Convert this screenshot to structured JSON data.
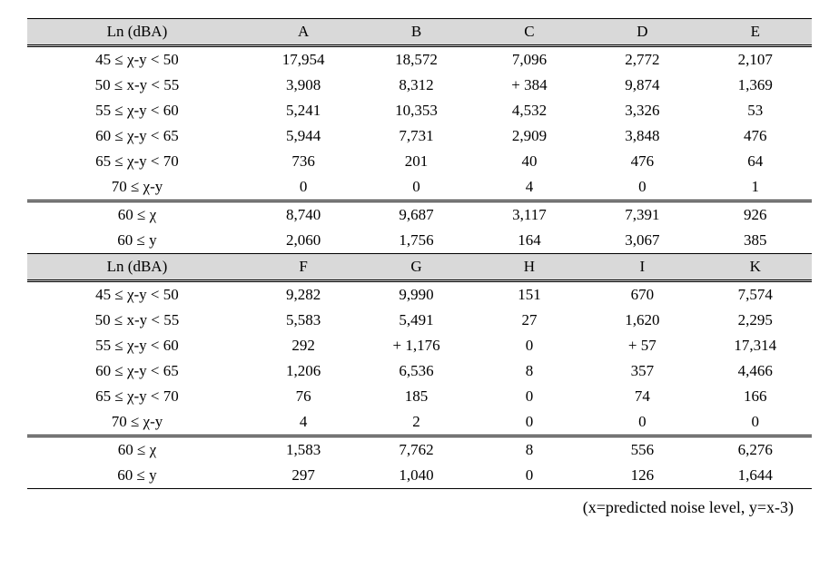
{
  "table": {
    "header_row_1": {
      "range": "Ln (dBA)",
      "cols": [
        "A",
        "B",
        "C",
        "D",
        "E"
      ]
    },
    "group1_rows": [
      {
        "range": "45 ≤ χ-y < 50",
        "vals": [
          "17,954",
          "18,572",
          "7,096",
          "2,772",
          "2,107"
        ]
      },
      {
        "range": "50 ≤ x-y < 55",
        "vals": [
          "3,908",
          "8,312",
          "+ 384",
          "9,874",
          "1,369"
        ]
      },
      {
        "range": "55 ≤ χ-y < 60",
        "vals": [
          "5,241",
          "10,353",
          "4,532",
          "3,326",
          "53"
        ]
      },
      {
        "range": "60 ≤ χ-y < 65",
        "vals": [
          "5,944",
          "7,731",
          "2,909",
          "3,848",
          "476"
        ]
      },
      {
        "range": "65 ≤ χ-y < 70",
        "vals": [
          "736",
          "201",
          "40",
          "476",
          "64"
        ]
      },
      {
        "range": "70 ≤ χ-y",
        "vals": [
          "0",
          "0",
          "4",
          "0",
          "1"
        ]
      }
    ],
    "group1_summary": [
      {
        "range": "60 ≤ χ",
        "vals": [
          "8,740",
          "9,687",
          "3,117",
          "7,391",
          "926"
        ]
      },
      {
        "range": "60 ≤ y",
        "vals": [
          "2,060",
          "1,756",
          "164",
          "3,067",
          "385"
        ]
      }
    ],
    "header_row_2": {
      "range": "Ln (dBA)",
      "cols": [
        "F",
        "G",
        "H",
        "I",
        "K"
      ]
    },
    "group2_rows": [
      {
        "range": "45 ≤ χ-y < 50",
        "vals": [
          "9,282",
          "9,990",
          "151",
          "670",
          "7,574"
        ]
      },
      {
        "range": "50 ≤ x-y < 55",
        "vals": [
          "5,583",
          "5,491",
          "27",
          "1,620",
          "2,295"
        ]
      },
      {
        "range": "55 ≤ χ-y < 60",
        "vals": [
          "292",
          "+ 1,176",
          "0",
          "+ 57",
          "17,314"
        ]
      },
      {
        "range": "60 ≤ χ-y < 65",
        "vals": [
          "1,206",
          "6,536",
          "8",
          "357",
          "4,466"
        ]
      },
      {
        "range": "65 ≤ χ-y < 70",
        "vals": [
          "76",
          "185",
          "0",
          "74",
          "166"
        ]
      },
      {
        "range": "70 ≤ χ-y",
        "vals": [
          "4",
          "2",
          "0",
          "0",
          "0"
        ]
      }
    ],
    "group2_summary": [
      {
        "range": "60 ≤ χ",
        "vals": [
          "1,583",
          "7,762",
          "8",
          "556",
          "6,276"
        ]
      },
      {
        "range": "60 ≤ y",
        "vals": [
          "297",
          "1,040",
          "0",
          "126",
          "1,644"
        ]
      }
    ]
  },
  "note_text": "(x=predicted noise level, y=x-3)",
  "style": {
    "background": "#ffffff",
    "text_color": "#000000",
    "header_bg": "#d9d9d9",
    "border_color": "#000000",
    "font_size_body": 17,
    "font_size_note": 18
  }
}
